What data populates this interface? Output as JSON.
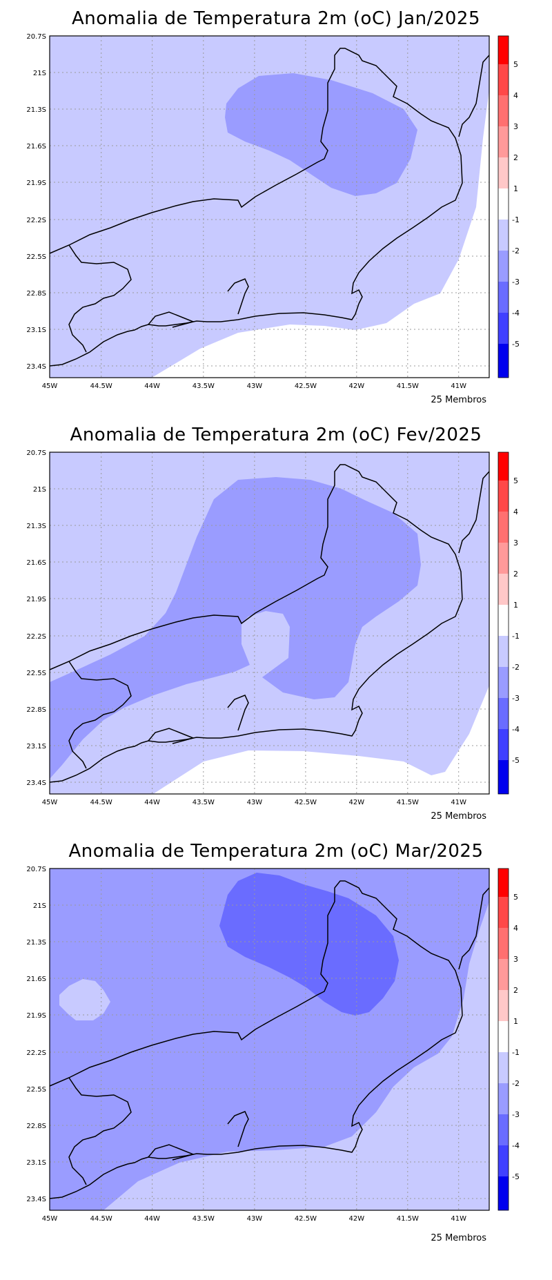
{
  "maps": [
    {
      "title": "Anomalia de Temperatura 2m (oC) Jan/2025",
      "footer": "25 Membros",
      "fields": [
        {
          "level": "-1 to -2",
          "color": "#c8caff"
        },
        {
          "level": "-2 to -3",
          "color": "#9a9cff"
        }
      ]
    },
    {
      "title": "Anomalia de Temperatura 2m (oC) Fev/2025",
      "footer": "25 Membros",
      "fields": [
        {
          "level": "-1 to -2",
          "color": "#c8caff"
        },
        {
          "level": "-2 to -3",
          "color": "#9a9cff"
        }
      ]
    },
    {
      "title": "Anomalia de Temperatura 2m (oC) Mar/2025",
      "footer": "25 Membros",
      "fields": [
        {
          "level": "-1 to -2",
          "color": "#c8caff"
        },
        {
          "level": "-2 to -3",
          "color": "#9a9cff"
        },
        {
          "level": "-3 to -4",
          "color": "#6a6cff"
        }
      ]
    }
  ],
  "axes": {
    "x_ticks": [
      "45W",
      "44.5W",
      "44W",
      "43.5W",
      "43W",
      "42.5W",
      "42W",
      "41.5W",
      "41W"
    ],
    "y_ticks": [
      "20.7S",
      "21S",
      "21.3S",
      "21.6S",
      "21.9S",
      "22.2S",
      "22.5S",
      "22.8S",
      "23.1S",
      "23.4S"
    ]
  },
  "colorbar": {
    "labels": [
      "5",
      "4",
      "3",
      "2",
      "1",
      "-1",
      "-2",
      "-3",
      "-4",
      "-5"
    ],
    "colors": [
      "#ff0000",
      "#ff4848",
      "#ff7070",
      "#ff9a9a",
      "#ffc8c8",
      "#ffffff",
      "#c8caff",
      "#9a9cff",
      "#6a6cff",
      "#4040ff",
      "#1010ff",
      "#0000ee"
    ]
  },
  "legend_colors": {
    "white": "#ffffff",
    "light_blue": "#c8caff",
    "mid_blue": "#9a9cff",
    "dark_blue": "#6a6cff"
  }
}
